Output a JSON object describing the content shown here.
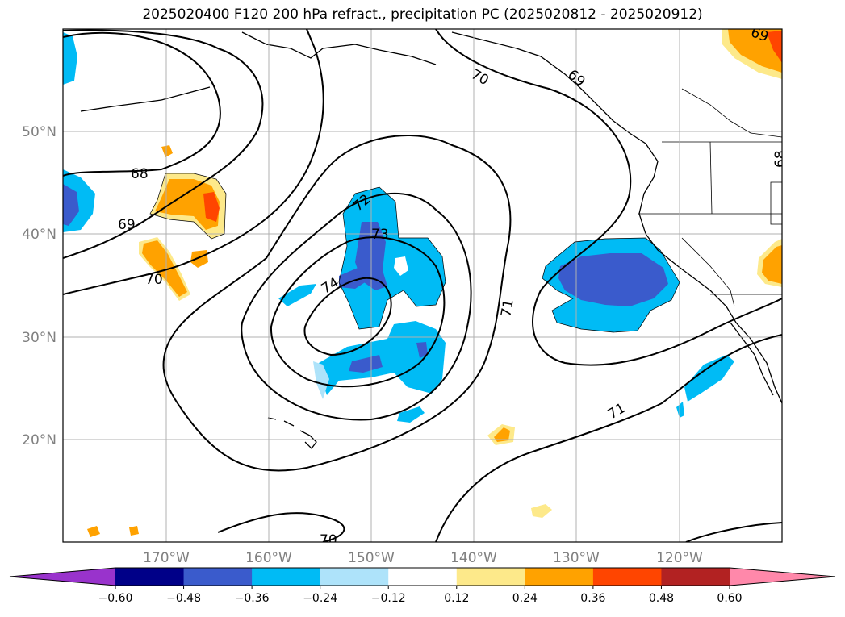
{
  "title": "2025020400 F120 200 hPa refract., precipitation PC (2025020812 - 2025020912)",
  "map": {
    "lat_labels": [
      "50°N",
      "40°N",
      "30°N",
      "20°N"
    ],
    "lon_labels": [
      "170°W",
      "160°W",
      "150°W",
      "140°W",
      "130°W",
      "120°W"
    ],
    "contour_labels": [
      "68",
      "69",
      "70",
      "70",
      "71",
      "71",
      "72",
      "73",
      "74",
      "70",
      "69",
      "68",
      "69"
    ]
  },
  "colorbar": {
    "ticks": [
      "−0.60",
      "−0.48",
      "−0.36",
      "−0.24",
      "−0.12",
      "0.12",
      "0.24",
      "0.36",
      "0.48",
      "0.60"
    ],
    "colors": [
      "#9933cc",
      "#000088",
      "#3a5bcc",
      "#00bbf5",
      "#aee3fa",
      "#ffffff",
      "#fde98a",
      "#ffa200",
      "#ff4500",
      "#b22222",
      "#ff88aa"
    ]
  }
}
